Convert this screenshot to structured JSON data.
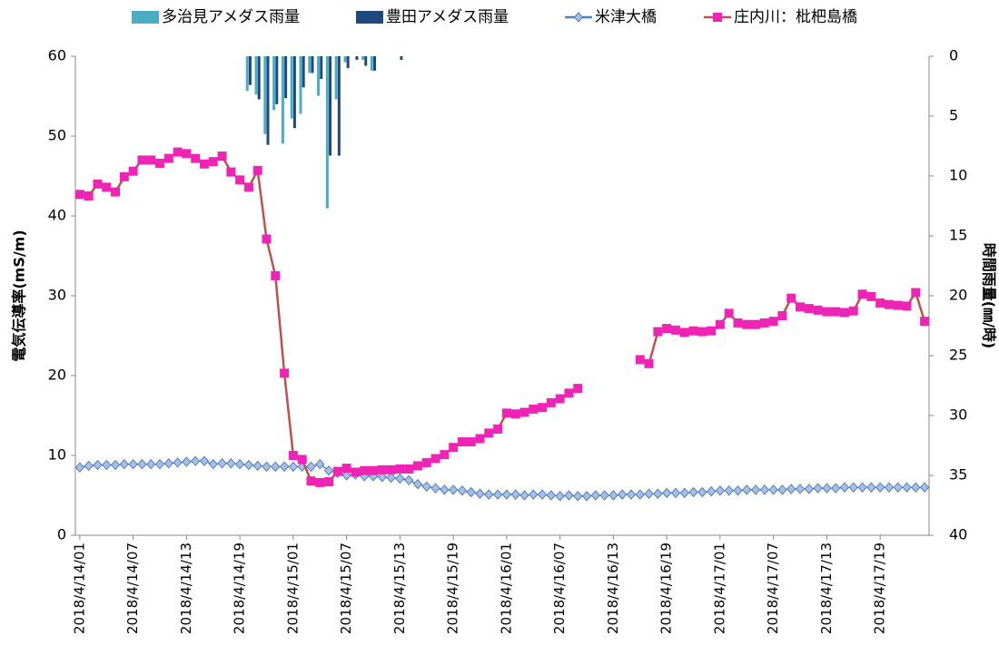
{
  "chart_data": {
    "type": "combo",
    "y_label": "電気伝導率(mS/m)",
    "y2_label": "時間雨量(㎜/時)",
    "ylim": [
      0,
      60
    ],
    "yticks": [
      0,
      10,
      20,
      30,
      40,
      50,
      60
    ],
    "y2lim": [
      0,
      40
    ],
    "y2ticks": [
      0,
      5,
      10,
      15,
      20,
      25,
      30,
      35,
      40
    ],
    "y2_inverted": true,
    "categories": [
      "2018/4/14/01",
      null,
      null,
      null,
      null,
      null,
      "2018/4/14/07",
      null,
      null,
      null,
      null,
      null,
      "2018/4/14/13",
      null,
      null,
      null,
      null,
      null,
      "2018/4/14/19",
      null,
      null,
      null,
      null,
      null,
      "2018/4/15/01",
      null,
      null,
      null,
      null,
      null,
      "2018/4/15/07",
      null,
      null,
      null,
      null,
      null,
      "2018/4/15/13",
      null,
      null,
      null,
      null,
      null,
      "2018/4/15/19",
      null,
      null,
      null,
      null,
      null,
      "2018/4/16/01",
      null,
      null,
      null,
      null,
      null,
      "2018/4/16/07",
      null,
      null,
      null,
      null,
      null,
      "2018/4/16/13",
      null,
      null,
      null,
      null,
      null,
      "2018/4/16/19",
      null,
      null,
      null,
      null,
      null,
      "2018/4/17/01",
      null,
      null,
      null,
      null,
      null,
      "2018/4/17/07",
      null,
      null,
      null,
      null,
      null,
      "2018/4/17/13",
      null,
      null,
      null,
      null,
      null,
      "2018/4/17/19",
      null,
      null,
      null,
      null,
      null
    ],
    "series": [
      {
        "name": "多治見アメダス雨量",
        "type": "bar",
        "axis": "y2",
        "color": "#4bacc6",
        "values": [
          0,
          0,
          0,
          0,
          0,
          0,
          0,
          0,
          0,
          0,
          0,
          0,
          0,
          0,
          0,
          0,
          0,
          0,
          0,
          2.9,
          3.2,
          6.5,
          4.5,
          7.3,
          5.2,
          4.8,
          1.4,
          3.3,
          12.7,
          3.6,
          0.5,
          0,
          0.3,
          1.2,
          0,
          0,
          0,
          0,
          0,
          0,
          0,
          0,
          0,
          0,
          0,
          0,
          0,
          0,
          0,
          0,
          0,
          0,
          0,
          0,
          0,
          0,
          0,
          0,
          0,
          0,
          0,
          0,
          0,
          0,
          0,
          0,
          0,
          0,
          0,
          0,
          0,
          0,
          0,
          0,
          0,
          0,
          0,
          0,
          0,
          0,
          0,
          0,
          0,
          0,
          0,
          0,
          0,
          0,
          0,
          0,
          0,
          0,
          0,
          0,
          0,
          0
        ]
      },
      {
        "name": "豊田アメダス雨量",
        "type": "bar",
        "axis": "y2",
        "color": "#1f497d",
        "values": [
          0,
          0,
          0,
          0,
          0,
          0,
          0,
          0,
          0,
          0,
          0,
          0,
          0,
          0,
          0,
          0,
          0,
          0,
          0,
          2.4,
          3.6,
          7.4,
          4.0,
          3.5,
          6.0,
          2.6,
          1.4,
          1.9,
          8.3,
          8.3,
          1.0,
          0.3,
          0.8,
          1.2,
          0,
          0,
          0.3,
          0,
          0,
          0,
          0,
          0,
          0,
          0,
          0,
          0,
          0,
          0,
          0,
          0,
          0,
          0,
          0,
          0,
          0,
          0,
          0,
          0,
          0,
          0,
          0,
          0,
          0,
          0,
          0,
          0,
          0,
          0,
          0,
          0,
          0,
          0,
          0,
          0,
          0,
          0,
          0,
          0,
          0,
          0,
          0,
          0,
          0,
          0,
          0,
          0,
          0,
          0,
          0,
          0,
          0,
          0,
          0,
          0,
          0,
          0
        ]
      },
      {
        "name": "米津大橋",
        "type": "line",
        "marker": "diamond",
        "color": "#4f81bd",
        "marker_color": "#a9bde6",
        "values": [
          8.5,
          8.7,
          8.8,
          8.8,
          8.8,
          8.9,
          8.9,
          8.9,
          8.9,
          8.9,
          9.0,
          9.1,
          9.2,
          9.3,
          9.3,
          8.9,
          9.0,
          9.0,
          8.9,
          8.8,
          8.7,
          8.6,
          8.6,
          8.6,
          8.6,
          8.6,
          8.6,
          8.9,
          8.1,
          7.8,
          7.5,
          7.6,
          7.4,
          7.4,
          7.3,
          7.2,
          7.1,
          6.9,
          6.4,
          6.1,
          5.9,
          5.7,
          5.7,
          5.6,
          5.4,
          5.2,
          5.1,
          5.1,
          5.1,
          5.1,
          5.0,
          5.1,
          5.1,
          5.0,
          4.9,
          5.0,
          4.9,
          4.9,
          5.0,
          5.0,
          5.0,
          5.1,
          5.1,
          5.1,
          5.2,
          5.2,
          5.3,
          5.3,
          5.3,
          5.4,
          5.4,
          5.5,
          5.6,
          5.6,
          5.6,
          5.7,
          5.7,
          5.7,
          5.7,
          5.7,
          5.8,
          5.8,
          5.8,
          5.9,
          5.9,
          5.9,
          6.0,
          6.0,
          6.0,
          6.0,
          6.0,
          6.0,
          6.0,
          6.0,
          6.0,
          6.0
        ]
      },
      {
        "name": "庄内川：枇杷島橋",
        "type": "line",
        "marker": "square",
        "color": "#c0504d",
        "marker_color": "#f024b4",
        "values": [
          42.7,
          42.5,
          44,
          43.6,
          43,
          44.9,
          45.6,
          47,
          47,
          46.6,
          47.2,
          48,
          47.8,
          47.2,
          46.5,
          46.8,
          47.5,
          45.5,
          44.5,
          43.6,
          45.7,
          37.1,
          32.5,
          20.3,
          10,
          9.5,
          6.8,
          6.6,
          6.7,
          8,
          8.4,
          7.9,
          8.1,
          8.1,
          8.2,
          8.2,
          8.3,
          8.3,
          8.7,
          9.1,
          9.6,
          10.1,
          11,
          11.7,
          11.7,
          12.1,
          12.8,
          13.3,
          15.3,
          15.2,
          15.4,
          15.8,
          16,
          16.6,
          17.1,
          17.8,
          18.4,
          null,
          null,
          null,
          null,
          null,
          null,
          22,
          21.5,
          25.5,
          25.9,
          25.7,
          25.4,
          25.6,
          25.5,
          25.6,
          26.4,
          27.8,
          26.6,
          26.4,
          26.4,
          26.6,
          26.8,
          27.5,
          29.7,
          28.6,
          28.4,
          28.2,
          28,
          28,
          27.9,
          28.1,
          30.2,
          29.9,
          29.1,
          28.9,
          28.8,
          28.7,
          30.4,
          26.8
        ]
      }
    ]
  }
}
